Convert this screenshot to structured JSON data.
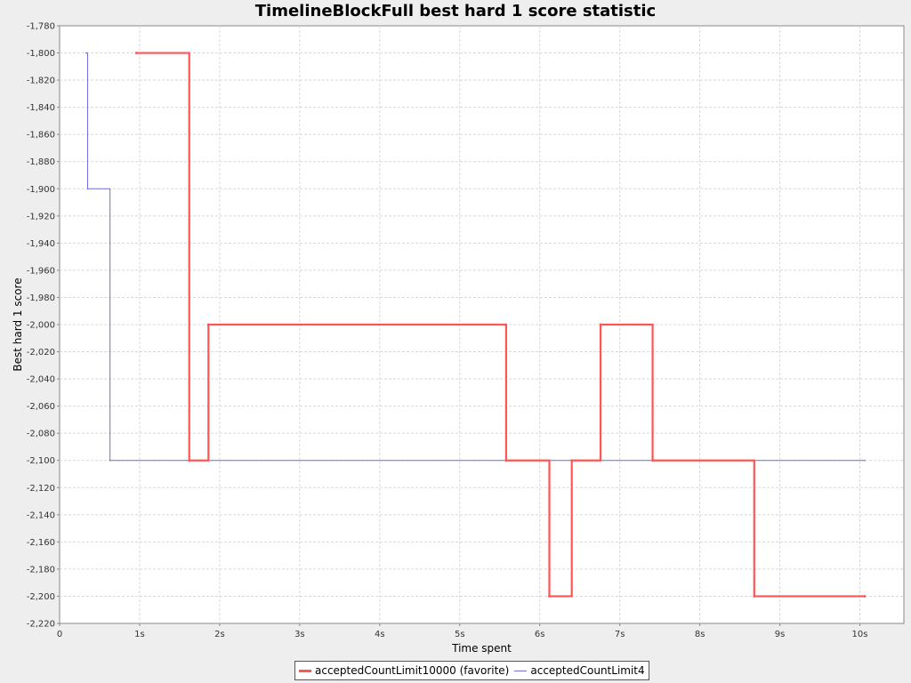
{
  "chart_data": {
    "type": "line",
    "title": "TimelineBlockFull best hard 1 score statistic",
    "xlabel": "Time spent",
    "ylabel": "Best hard 1 score",
    "xlim": [
      0,
      10.55
    ],
    "ylim": [
      -2220,
      -1780
    ],
    "x_ticks": [
      0,
      1,
      2,
      3,
      4,
      5,
      6,
      7,
      8,
      9,
      10
    ],
    "x_tick_labels": [
      "0",
      "1s",
      "2s",
      "3s",
      "4s",
      "5s",
      "6s",
      "7s",
      "8s",
      "9s",
      "10s"
    ],
    "y_ticks": [
      -1780,
      -1800,
      -1820,
      -1840,
      -1860,
      -1880,
      -1900,
      -1920,
      -1940,
      -1960,
      -1980,
      -2000,
      -2020,
      -2040,
      -2060,
      -2080,
      -2100,
      -2120,
      -2140,
      -2160,
      -2180,
      -2200,
      -2220
    ],
    "y_tick_labels": [
      "-1,780",
      "-1,800",
      "-1,820",
      "-1,840",
      "-1,860",
      "-1,880",
      "-1,900",
      "-1,920",
      "-1,940",
      "-1,960",
      "-1,980",
      "-2,000",
      "-2,020",
      "-2,040",
      "-2,060",
      "-2,080",
      "-2,100",
      "-2,120",
      "-2,140",
      "-2,160",
      "-2,180",
      "-2,200",
      "-2,220"
    ],
    "grid": true,
    "legend_position": "bottom",
    "series": [
      {
        "name": "acceptedCountLimit10000 (favorite)",
        "color": "#ff5555",
        "step": true,
        "x": [
          0.96,
          1.62,
          1.86,
          5.58,
          6.12,
          6.4,
          6.76,
          7.41,
          8.68,
          10.06
        ],
        "y": [
          -1800,
          -2100,
          -2000,
          -2100,
          -2200,
          -2100,
          -2000,
          -2100,
          -2200,
          -2200
        ]
      },
      {
        "name": "acceptedCountLimit4",
        "color": "#7070dd",
        "step": true,
        "x": [
          0.33,
          0.35,
          0.63,
          10.06
        ],
        "y": [
          -1800,
          -1900,
          -2100,
          -2100
        ]
      }
    ]
  }
}
